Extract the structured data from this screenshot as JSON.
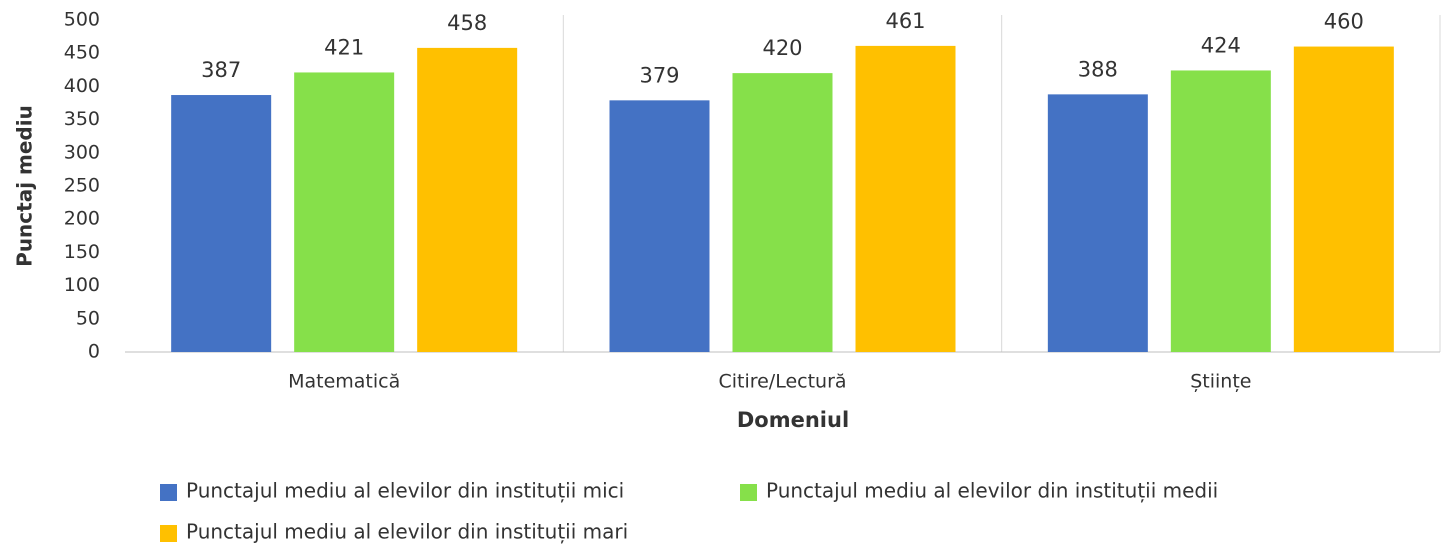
{
  "chart_data": {
    "type": "bar",
    "categories": [
      "Matematică",
      "Citire/Lectură",
      "Științe"
    ],
    "series": [
      {
        "name": "Punctajul mediu al elevilor din instituții mici",
        "color": "#4472c4",
        "values": [
          387,
          379,
          388
        ]
      },
      {
        "name": "Punctajul mediu al elevilor din instituții medii",
        "color": "#86e04a",
        "values": [
          421,
          420,
          424
        ]
      },
      {
        "name": "Punctajul mediu al elevilor din instituții mari",
        "color": "#ffc000",
        "values": [
          458,
          461,
          460
        ]
      }
    ],
    "xlabel": "Domeniul",
    "ylabel": "Punctaj mediu",
    "ylim": [
      0,
      500
    ],
    "yticks": [
      0,
      50,
      100,
      150,
      200,
      250,
      300,
      350,
      400,
      450,
      500
    ],
    "grid": false,
    "legend": "bottom"
  }
}
